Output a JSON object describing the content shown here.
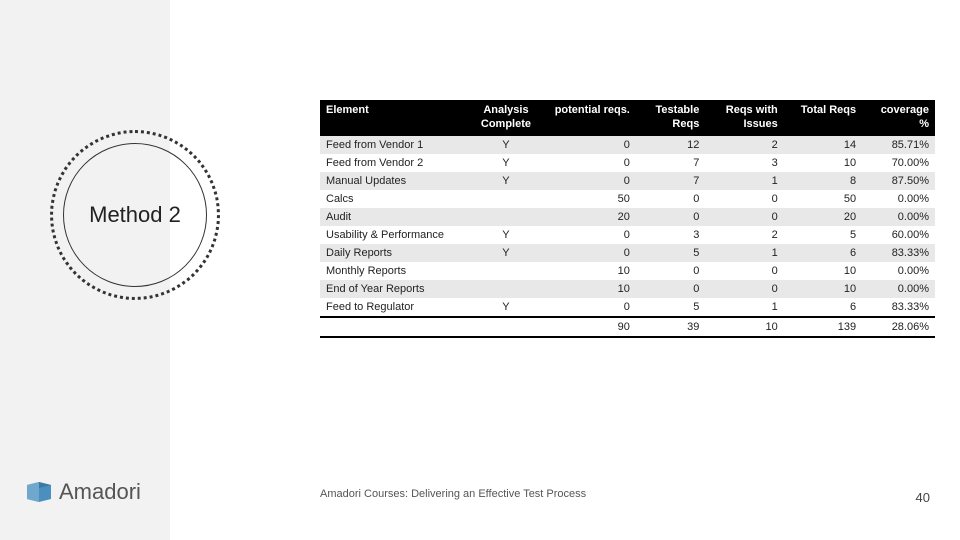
{
  "slide": {
    "title": "Method 2",
    "footer": "Amadori Courses: Delivering an Effective Test Process",
    "page": "40",
    "logo": "Amadori"
  },
  "table": {
    "headers": {
      "element": "Element",
      "analysis": "Analysis Complete",
      "potential": "potential reqs.",
      "testable": "Testable Reqs",
      "issues": "Reqs with Issues",
      "total": "Total Reqs",
      "coverage": "coverage %"
    },
    "rows": [
      {
        "element": "Feed from Vendor 1",
        "ac": "Y",
        "pr": "0",
        "tr": "12",
        "ri": "2",
        "tot": "14",
        "cov": "85.71%"
      },
      {
        "element": "Feed from Vendor 2",
        "ac": "Y",
        "pr": "0",
        "tr": "7",
        "ri": "3",
        "tot": "10",
        "cov": "70.00%"
      },
      {
        "element": "Manual Updates",
        "ac": "Y",
        "pr": "0",
        "tr": "7",
        "ri": "1",
        "tot": "8",
        "cov": "87.50%"
      },
      {
        "element": "Calcs",
        "ac": "",
        "pr": "50",
        "tr": "0",
        "ri": "0",
        "tot": "50",
        "cov": "0.00%"
      },
      {
        "element": "Audit",
        "ac": "",
        "pr": "20",
        "tr": "0",
        "ri": "0",
        "tot": "20",
        "cov": "0.00%"
      },
      {
        "element": "Usability & Performance",
        "ac": "Y",
        "pr": "0",
        "tr": "3",
        "ri": "2",
        "tot": "5",
        "cov": "60.00%"
      },
      {
        "element": "Daily Reports",
        "ac": "Y",
        "pr": "0",
        "tr": "5",
        "ri": "1",
        "tot": "6",
        "cov": "83.33%"
      },
      {
        "element": "Monthly Reports",
        "ac": "",
        "pr": "10",
        "tr": "0",
        "ri": "0",
        "tot": "10",
        "cov": "0.00%"
      },
      {
        "element": "End of Year Reports",
        "ac": "",
        "pr": "10",
        "tr": "0",
        "ri": "0",
        "tot": "10",
        "cov": "0.00%"
      },
      {
        "element": "Feed to Regulator",
        "ac": "Y",
        "pr": "0",
        "tr": "5",
        "ri": "1",
        "tot": "6",
        "cov": "83.33%"
      }
    ],
    "totals": {
      "pr": "90",
      "tr": "39",
      "ri": "10",
      "tot": "139",
      "cov": "28.06%"
    }
  },
  "style": {
    "header_bg": "#000000",
    "header_fg": "#ffffff",
    "row_odd_bg": "#e8e8e8",
    "row_even_bg": "#ffffff",
    "sidebar_bg": "#f2f2f2",
    "circle_border": "#333333",
    "logo_color": "#4a8fbd",
    "font_table": 11,
    "font_title": 22
  }
}
